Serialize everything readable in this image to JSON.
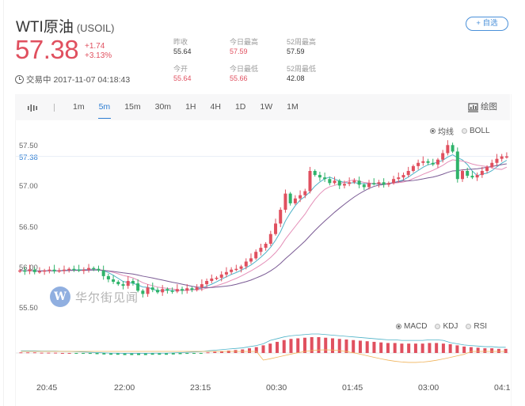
{
  "header": {
    "name": "WTI原油",
    "code": "(USOIL)",
    "price": "57.38",
    "change": "+1.74",
    "change_pct": "+3.13%",
    "status": "交易中",
    "timestamp": "2017-11-07 04:18:43",
    "follow_label": "+ 自选"
  },
  "stats": [
    {
      "label": "昨收",
      "value": "55.64",
      "color": "normal"
    },
    {
      "label": "今日最高",
      "value": "57.59",
      "color": "red"
    },
    {
      "label": "52周最高",
      "value": "57.59",
      "color": "normal"
    },
    {
      "label": "今开",
      "value": "55.64",
      "color": "red"
    },
    {
      "label": "今日最低",
      "value": "55.66",
      "color": "red"
    },
    {
      "label": "52周最低",
      "value": "42.08",
      "color": "normal"
    }
  ],
  "toolbar": {
    "chart_type_icon": "candlestick-icon",
    "timeframes": [
      "1m",
      "5m",
      "15m",
      "30m",
      "1H",
      "4H",
      "1D",
      "1W",
      "1M"
    ],
    "active_timeframe": "5m",
    "draw_label": "绘图"
  },
  "main_indicators": {
    "options": [
      "均线",
      "BOLL"
    ],
    "selected": "均线"
  },
  "sub_indicators": {
    "options": [
      "MACD",
      "KDJ",
      "RSI"
    ],
    "selected": "MACD"
  },
  "watermark": "华尔街见闻",
  "colors": {
    "up": "#e0505f",
    "down": "#2fb36a",
    "accent": "#2d7dd2",
    "ma5": "#4fb3c8",
    "ma10": "#e48fb8",
    "ma20": "#7a5a94"
  },
  "chart_data": {
    "type": "candlestick",
    "title": "WTI原油 (USOIL) 5m",
    "y_ticks": [
      "57.50",
      "57.00",
      "56.50",
      "56.00",
      "55.50"
    ],
    "current_price_label": "57.38",
    "ylim": [
      55.4,
      57.65
    ],
    "x_ticks": [
      "20:45",
      "22:00",
      "23:15",
      "00:30",
      "01:45",
      "03:00",
      "04:1"
    ],
    "legend": [
      "均线",
      "BOLL"
    ],
    "close_series": [
      55.97,
      55.96,
      55.98,
      55.95,
      55.96,
      55.97,
      55.98,
      55.96,
      55.97,
      55.98,
      55.99,
      55.98,
      55.97,
      55.98,
      56.0,
      55.99,
      55.97,
      55.9,
      55.86,
      55.83,
      55.8,
      55.78,
      55.84,
      55.81,
      55.72,
      55.68,
      55.76,
      55.73,
      55.7,
      55.74,
      55.72,
      55.71,
      55.74,
      55.72,
      55.75,
      55.73,
      55.76,
      55.8,
      55.84,
      55.87,
      55.88,
      55.92,
      55.95,
      55.98,
      55.99,
      56.02,
      56.08,
      56.12,
      56.2,
      56.25,
      56.3,
      56.42,
      56.55,
      56.72,
      56.92,
      56.8,
      56.86,
      56.9,
      56.95,
      57.2,
      57.15,
      57.12,
      57.1,
      57.05,
      57.08,
      57.02,
      57.04,
      57.06,
      57.08,
      57.03,
      57.0,
      57.05,
      57.04,
      57.06,
      57.03,
      57.05,
      57.1,
      57.12,
      57.15,
      57.2,
      57.26,
      57.3,
      57.32,
      57.3,
      57.28,
      57.34,
      57.42,
      57.52,
      57.44,
      57.1,
      57.2,
      57.14,
      57.12,
      57.15,
      57.2,
      57.25,
      57.3,
      57.35,
      57.38,
      57.38
    ],
    "macd_histogram": [
      0.01,
      0.01,
      0.01,
      0.005,
      0.005,
      0.005,
      0.0,
      0.0,
      -0.005,
      -0.01,
      -0.015,
      -0.02,
      -0.025,
      -0.03,
      -0.03,
      -0.035,
      -0.035,
      -0.035,
      -0.035,
      -0.03,
      -0.03,
      -0.03,
      -0.025,
      -0.02,
      -0.015,
      -0.01,
      -0.005,
      0.01,
      0.02,
      0.03,
      0.04,
      0.05,
      0.06,
      0.08,
      0.1,
      0.13,
      0.16,
      0.19,
      0.22,
      0.24,
      0.25,
      0.26,
      0.27,
      0.27,
      0.26,
      0.25,
      0.24,
      0.23,
      0.22,
      0.21,
      0.2,
      0.19,
      0.18,
      0.17,
      0.17,
      0.16,
      0.16,
      0.16,
      0.16,
      0.17,
      0.17,
      0.16,
      0.15,
      0.13,
      0.11,
      0.1,
      0.09,
      0.08,
      0.08,
      0.07,
      0.07
    ],
    "sub_chart": "MACD"
  }
}
